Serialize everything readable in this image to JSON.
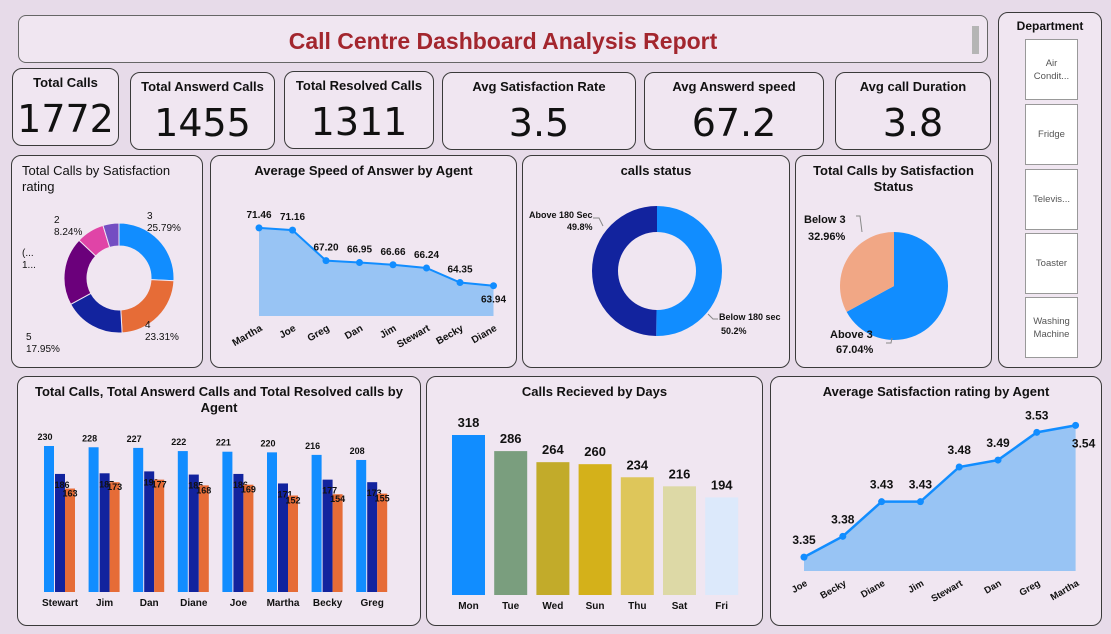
{
  "header": {
    "title": "Call Centre Dashboard Analysis Report"
  },
  "kpis": [
    {
      "label": "Total Calls",
      "value": "1772"
    },
    {
      "label": "Total Answerd Calls",
      "value": "1455"
    },
    {
      "label": "Total Resolved Calls",
      "value": "1311"
    },
    {
      "label": "Avg Satisfaction Rate",
      "value": "3.5"
    },
    {
      "label": "Avg Answerd speed",
      "value": "67.2"
    },
    {
      "label": "Avg call Duration",
      "value": "3.8"
    }
  ],
  "department": {
    "title": "Department",
    "items": [
      "Air Condit...",
      "Fridge",
      "Televis...",
      "Toaster",
      "Washing Machine"
    ]
  },
  "colors": {
    "blue": "#118dff",
    "navy": "#12239e",
    "orange": "#e66c37",
    "purple": "#6b007b",
    "magenta": "#e044a7",
    "violet": "#744ec2",
    "peach": "#f1a785",
    "area": "#98c4f4",
    "title": "#a3262e"
  },
  "chart_data": [
    {
      "id": "satisfaction_rating_donut",
      "type": "pie",
      "title": "Total Calls by Satisfaction rating",
      "categories": [
        "3",
        "4",
        "5",
        "(...",
        "2",
        ""
      ],
      "values": [
        25.79,
        23.31,
        17.95,
        20.0,
        8.24,
        4.71
      ],
      "labels": [
        {
          "line1": "3",
          "line2": "25.79%"
        },
        {
          "line1": "4",
          "line2": "23.31%"
        },
        {
          "line1": "5",
          "line2": "17.95%"
        },
        {
          "line1": "(...",
          "line2": "1..."
        },
        {
          "line1": "2",
          "line2": "8.24%"
        },
        {
          "line1": "",
          "line2": ""
        }
      ]
    },
    {
      "id": "avg_speed_by_agent",
      "type": "area",
      "title": "Average Speed of Answer by Agent",
      "categories": [
        "Martha",
        "Joe",
        "Greg",
        "Dan",
        "Jim",
        "Stewart",
        "Becky",
        "Diane"
      ],
      "values": [
        71.46,
        71.16,
        67.2,
        66.95,
        66.66,
        66.24,
        64.35,
        63.94
      ],
      "data_labels": [
        "71.46",
        "71.16",
        "67.20",
        "66.95",
        "66.66",
        "66.24",
        "64.35",
        "63.94"
      ],
      "ylim": [
        60,
        73
      ]
    },
    {
      "id": "calls_status",
      "type": "pie",
      "title": "calls status",
      "categories": [
        "Above 180 Sec",
        "Below 180 sec"
      ],
      "values": [
        49.8,
        50.2
      ],
      "labels": [
        "49.8%",
        "50.2%"
      ]
    },
    {
      "id": "satisfaction_status_pie",
      "type": "pie",
      "title": "Total Calls by Satisfaction Status",
      "categories": [
        "Below 3",
        "Above 3"
      ],
      "values": [
        32.96,
        67.04
      ],
      "labels": [
        "32.96%",
        "67.04%"
      ]
    },
    {
      "id": "calls_by_agent",
      "type": "bar",
      "title": "Total Calls, Total Answerd Calls and Total Resolved calls by Agent",
      "categories": [
        "Stewart",
        "Jim",
        "Dan",
        "Diane",
        "Joe",
        "Martha",
        "Becky",
        "Greg"
      ],
      "series": [
        {
          "name": "Total Calls",
          "values": [
            230,
            228,
            227,
            222,
            221,
            220,
            216,
            208
          ]
        },
        {
          "name": "Total Answerd Calls",
          "values": [
            186,
            187,
            190,
            185,
            186,
            171,
            177,
            173
          ]
        },
        {
          "name": "Total Resolved Calls",
          "values": [
            163,
            173,
            177,
            168,
            169,
            152,
            154,
            155
          ]
        }
      ],
      "ylim": [
        0,
        240
      ]
    },
    {
      "id": "calls_by_days",
      "type": "bar",
      "title": "Calls Recieved by Days",
      "categories": [
        "Mon",
        "Tue",
        "Wed",
        "Sun",
        "Thu",
        "Sat",
        "Fri"
      ],
      "values": [
        318,
        286,
        264,
        260,
        234,
        216,
        194
      ],
      "colors": [
        "#118dff",
        "#7a9e7e",
        "#c2ab2a",
        "#d4b11a",
        "#dec65a",
        "#ddd9a6",
        "#dce9fb"
      ],
      "ylim": [
        0,
        330
      ]
    },
    {
      "id": "avg_satisfaction_by_agent",
      "type": "area",
      "title": "Average Satisfaction rating by Agent",
      "categories": [
        "Joe",
        "Becky",
        "Diane",
        "Jim",
        "Stewart",
        "Dan",
        "Greg",
        "Martha"
      ],
      "values": [
        3.35,
        3.38,
        3.43,
        3.43,
        3.48,
        3.49,
        3.53,
        3.54
      ],
      "data_labels": [
        "3.35",
        "3.38",
        "3.43",
        "3.43",
        "3.48",
        "3.49",
        "3.53",
        "3.54"
      ],
      "ylim": [
        3.33,
        3.555
      ]
    }
  ]
}
